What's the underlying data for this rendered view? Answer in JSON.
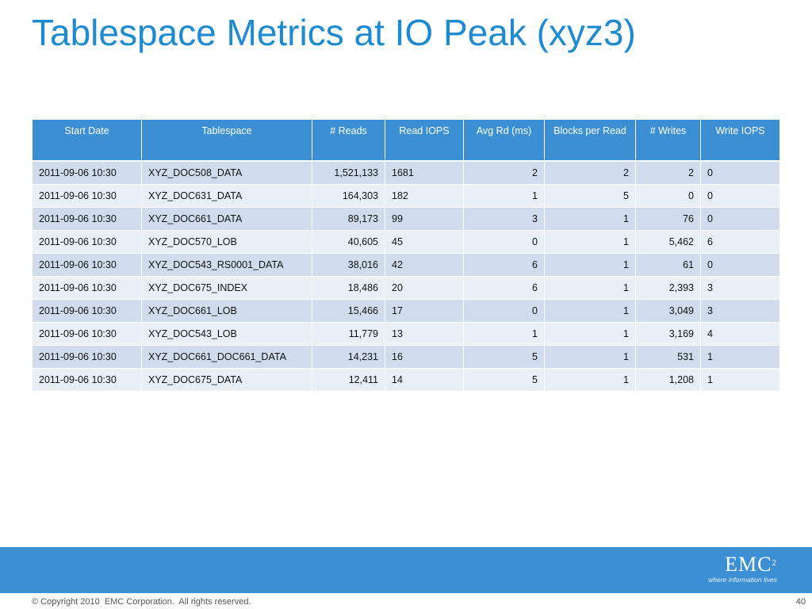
{
  "slide": {
    "title": "Tablespace Metrics at IO Peak (xyz3)",
    "page_number": "40",
    "copyright": "© Copyright 2010  EMC Corporation.  All rights reserved."
  },
  "logo": {
    "brand": "EMC",
    "superscript": "2",
    "tagline": "where information lives"
  },
  "colors": {
    "title": "#1e8bd0",
    "header_bg": "#3b8fd2",
    "row_odd": "#d0dcee",
    "row_even": "#e9eef7",
    "footer_band": "#3b8fd2"
  },
  "table": {
    "headers": [
      "Start Date",
      "Tablespace",
      "# Reads",
      "Read IOPS",
      "Avg Rd (ms)",
      "Blocks per Read",
      "# Writes",
      "Write IOPS"
    ],
    "rows": [
      [
        "2011-09-06 10:30",
        "XYZ_DOC508_DATA",
        "1,521,133",
        "1681",
        "2",
        "2",
        "2",
        "0"
      ],
      [
        "2011-09-06 10:30",
        "XYZ_DOC631_DATA",
        "164,303",
        "182",
        "1",
        "5",
        "0",
        "0"
      ],
      [
        "2011-09-06 10:30",
        "XYZ_DOC661_DATA",
        "89,173",
        "99",
        "3",
        "1",
        "76",
        "0"
      ],
      [
        "2011-09-06 10:30",
        "XYZ_DOC570_LOB",
        "40,605",
        "45",
        "0",
        "1",
        "5,462",
        "6"
      ],
      [
        "2011-09-06 10:30",
        "XYZ_DOC543_RS0001_DATA",
        "38,016",
        "42",
        "6",
        "1",
        "61",
        "0"
      ],
      [
        "2011-09-06 10:30",
        "XYZ_DOC675_INDEX",
        "18,486",
        "20",
        "6",
        "1",
        "2,393",
        "3"
      ],
      [
        "2011-09-06 10:30",
        "XYZ_DOC661_LOB",
        "15,466",
        "17",
        "0",
        "1",
        "3,049",
        "3"
      ],
      [
        "2011-09-06 10:30",
        "XYZ_DOC543_LOB",
        "11,779",
        "13",
        "1",
        "1",
        "3,169",
        "4"
      ],
      [
        "2011-09-06 10:30",
        "XYZ_DOC661_DOC661_DATA",
        "14,231",
        "16",
        "5",
        "1",
        "531",
        "1"
      ],
      [
        "2011-09-06 10:30",
        "XYZ_DOC675_DATA",
        "12,411",
        "14",
        "5",
        "1",
        "1,208",
        "1"
      ]
    ]
  }
}
